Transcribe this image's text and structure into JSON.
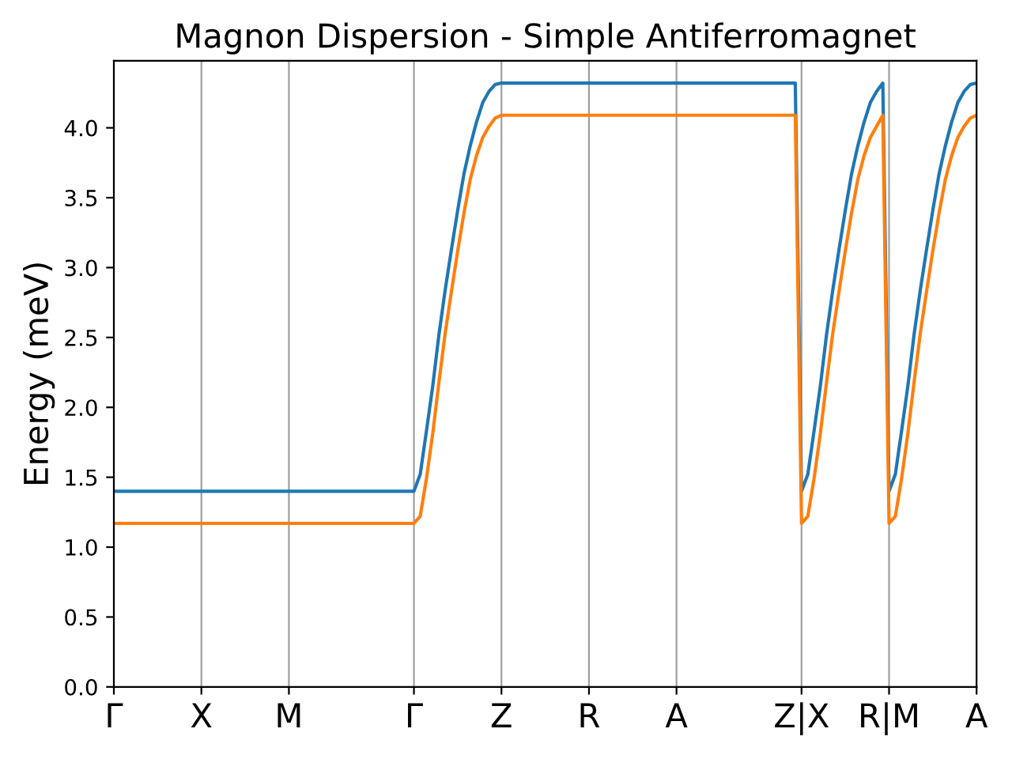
{
  "chart_data": {
    "type": "line",
    "title": "Magnon Dispersion - Simple Antiferromagnet",
    "ylabel": "Energy (meV)",
    "categories": [
      "Γ",
      null,
      null,
      null,
      null,
      null,
      null,
      null,
      null,
      null,
      null,
      null,
      null,
      null,
      "X",
      null,
      null,
      null,
      null,
      null,
      null,
      null,
      null,
      null,
      null,
      null,
      null,
      null,
      "M",
      null,
      null,
      null,
      null,
      null,
      null,
      null,
      null,
      null,
      null,
      null,
      null,
      null,
      null,
      null,
      null,
      null,
      null,
      null,
      "Γ",
      null,
      null,
      null,
      null,
      null,
      null,
      null,
      null,
      null,
      null,
      null,
      null,
      null,
      "Z",
      null,
      null,
      null,
      null,
      null,
      null,
      null,
      null,
      null,
      null,
      null,
      null,
      null,
      "R",
      null,
      null,
      null,
      null,
      null,
      null,
      null,
      null,
      null,
      null,
      null,
      null,
      null,
      "A",
      null,
      null,
      null,
      null,
      null,
      null,
      null,
      null,
      null,
      null,
      null,
      null,
      null,
      null,
      null,
      null,
      null,
      null,
      null,
      "Z|X",
      null,
      null,
      null,
      null,
      null,
      null,
      null,
      null,
      null,
      null,
      null,
      null,
      null,
      "R|M",
      null,
      null,
      null,
      null,
      null,
      null,
      null,
      null,
      null,
      null,
      null,
      null,
      null,
      "A"
    ],
    "series": [
      {
        "color": "#1f77b4",
        "values": [
          1.4,
          1.4,
          1.4,
          1.4,
          1.4,
          1.4,
          1.4,
          1.4,
          1.4,
          1.4,
          1.4,
          1.4,
          1.4,
          1.4,
          1.4,
          1.4,
          1.4,
          1.4,
          1.4,
          1.4,
          1.4,
          1.4,
          1.4,
          1.4,
          1.4,
          1.4,
          1.4,
          1.4,
          1.4,
          1.4,
          1.4,
          1.4,
          1.4,
          1.4,
          1.4,
          1.4,
          1.4,
          1.4,
          1.4,
          1.4,
          1.4,
          1.4,
          1.4,
          1.4,
          1.4,
          1.4,
          1.4,
          1.4,
          1.4,
          1.52,
          1.83,
          2.15,
          2.52,
          2.84,
          3.13,
          3.41,
          3.67,
          3.87,
          4.04,
          4.18,
          4.26,
          4.31,
          4.32,
          4.32,
          4.32,
          4.32,
          4.32,
          4.32,
          4.32,
          4.32,
          4.32,
          4.32,
          4.32,
          4.32,
          4.32,
          4.32,
          4.32,
          4.32,
          4.32,
          4.32,
          4.32,
          4.32,
          4.32,
          4.32,
          4.32,
          4.32,
          4.32,
          4.32,
          4.32,
          4.32,
          4.32,
          4.32,
          4.32,
          4.32,
          4.32,
          4.32,
          4.32,
          4.32,
          4.32,
          4.32,
          4.32,
          4.32,
          4.32,
          4.32,
          4.32,
          4.32,
          4.32,
          4.32,
          4.32,
          4.32,
          1.4,
          1.52,
          1.83,
          2.15,
          2.52,
          2.84,
          3.13,
          3.41,
          3.67,
          3.87,
          4.04,
          4.18,
          4.26,
          4.32,
          1.4,
          1.52,
          1.83,
          2.15,
          2.52,
          2.84,
          3.13,
          3.41,
          3.67,
          3.87,
          4.04,
          4.18,
          4.26,
          4.31,
          4.32
        ]
      },
      {
        "color": "#ff7f0e",
        "values": [
          1.17,
          1.17,
          1.17,
          1.17,
          1.17,
          1.17,
          1.17,
          1.17,
          1.17,
          1.17,
          1.17,
          1.17,
          1.17,
          1.17,
          1.17,
          1.17,
          1.17,
          1.17,
          1.17,
          1.17,
          1.17,
          1.17,
          1.17,
          1.17,
          1.17,
          1.17,
          1.17,
          1.17,
          1.17,
          1.17,
          1.17,
          1.17,
          1.17,
          1.17,
          1.17,
          1.17,
          1.17,
          1.17,
          1.17,
          1.17,
          1.17,
          1.17,
          1.17,
          1.17,
          1.17,
          1.17,
          1.17,
          1.17,
          1.17,
          1.22,
          1.49,
          1.81,
          2.18,
          2.53,
          2.83,
          3.12,
          3.39,
          3.63,
          3.8,
          3.93,
          4.01,
          4.07,
          4.09,
          4.09,
          4.09,
          4.09,
          4.09,
          4.09,
          4.09,
          4.09,
          4.09,
          4.09,
          4.09,
          4.09,
          4.09,
          4.09,
          4.09,
          4.09,
          4.09,
          4.09,
          4.09,
          4.09,
          4.09,
          4.09,
          4.09,
          4.09,
          4.09,
          4.09,
          4.09,
          4.09,
          4.09,
          4.09,
          4.09,
          4.09,
          4.09,
          4.09,
          4.09,
          4.09,
          4.09,
          4.09,
          4.09,
          4.09,
          4.09,
          4.09,
          4.09,
          4.09,
          4.09,
          4.09,
          4.09,
          4.09,
          1.17,
          1.22,
          1.49,
          1.81,
          2.18,
          2.53,
          2.83,
          3.12,
          3.39,
          3.63,
          3.8,
          3.93,
          4.01,
          4.09,
          1.17,
          1.22,
          1.49,
          1.81,
          2.18,
          2.53,
          2.83,
          3.12,
          3.39,
          3.63,
          3.8,
          3.93,
          4.01,
          4.07,
          4.09
        ]
      }
    ],
    "ylim": [
      0,
      4.48
    ],
    "yticks": [
      {
        "value": 0,
        "label": "0.0"
      },
      0.5,
      {
        "value": 1,
        "label": "1.0"
      },
      1.5,
      {
        "value": 2,
        "label": "2.0"
      },
      2.5,
      {
        "value": 3,
        "label": "3.0"
      },
      3.5,
      {
        "value": 4,
        "label": "4.0"
      }
    ],
    "grid": "x",
    "legend": false,
    "marker": "none",
    "line_style": "solid"
  }
}
